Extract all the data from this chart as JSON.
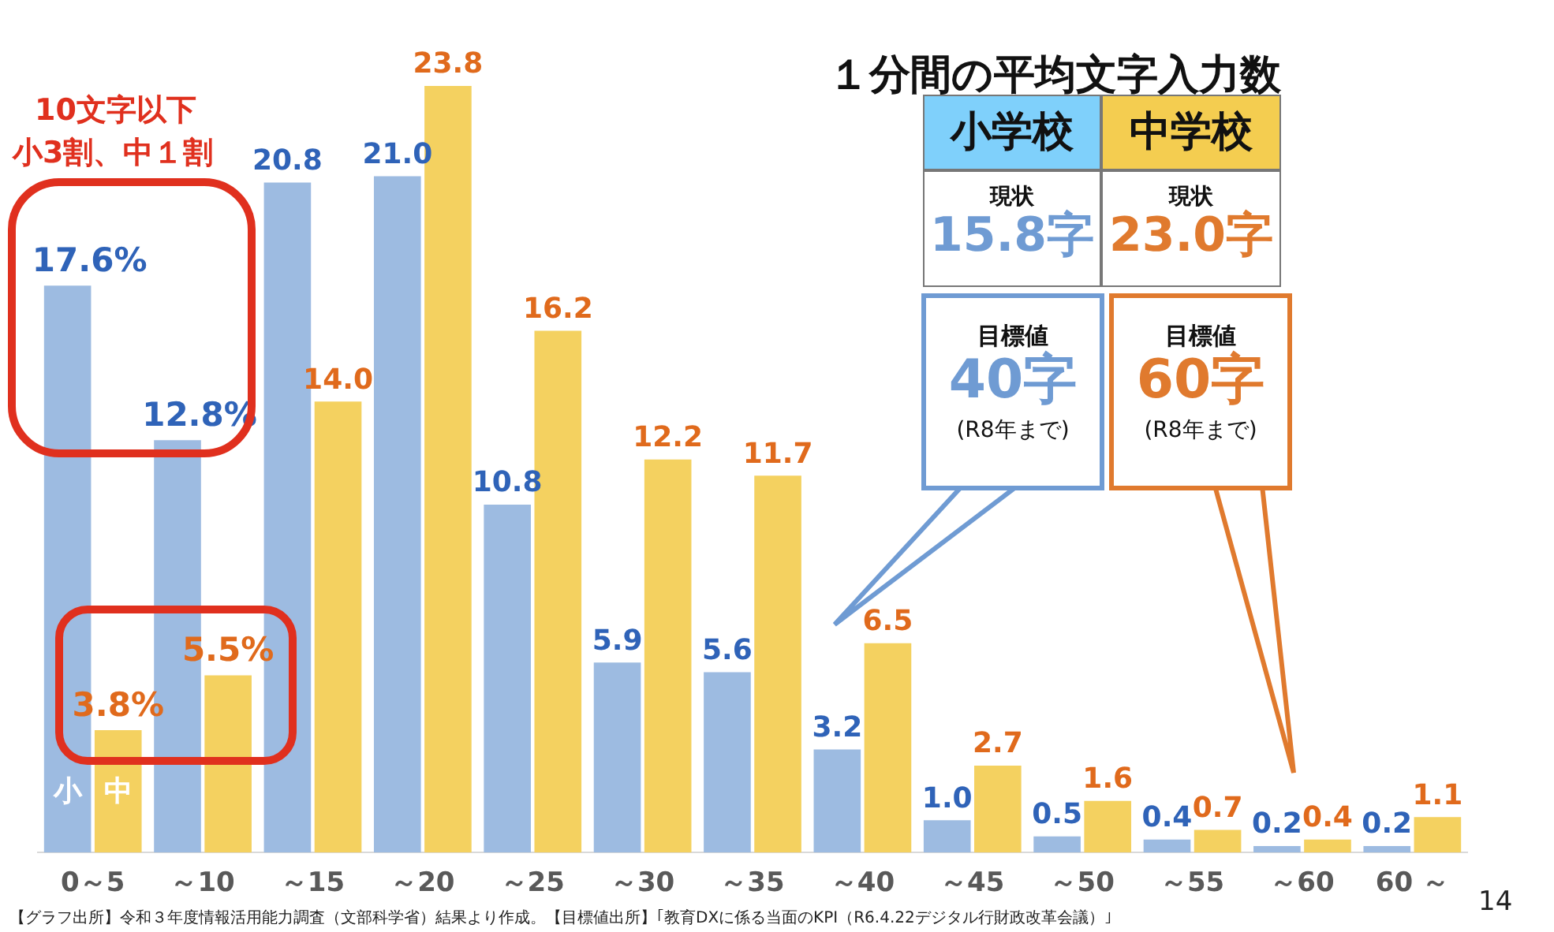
{
  "chart_data": [
    {
      "type": "bar",
      "categories": [
        "0～5",
        "～10",
        "～15",
        "～20",
        "～25",
        "～30",
        "～35",
        "～40",
        "～45",
        "～50",
        "～55",
        "～60",
        "60 ～"
      ],
      "series": [
        {
          "name": "小",
          "color": "#9dbbe1",
          "values": [
            17.6,
            12.8,
            20.8,
            21.0,
            10.8,
            5.9,
            5.6,
            3.2,
            1.0,
            0.5,
            0.4,
            0.2,
            0.2
          ],
          "value_labels": [
            "17.6%",
            "12.8%",
            "20.8",
            "21.0",
            "10.8",
            "5.9",
            "5.6",
            "3.2",
            "1.0",
            "0.5",
            "0.4",
            "0.2",
            "0.2"
          ]
        },
        {
          "name": "中",
          "color": "#f4d160",
          "values": [
            3.8,
            5.5,
            14.0,
            23.8,
            16.2,
            12.2,
            11.7,
            6.5,
            2.7,
            1.6,
            0.7,
            0.4,
            1.1
          ],
          "value_labels": [
            "3.8%",
            "5.5%",
            "14.0",
            "23.8",
            "16.2",
            "12.2",
            "11.7",
            "6.5",
            "2.7",
            "1.6",
            "0.7",
            "0.4",
            "1.1"
          ]
        }
      ],
      "tick_labels": "x",
      "legend": false,
      "annotations": [
        "10文字以下",
        "小3割、中１割",
        "【グラフ出所】令和３年度情報活用能力調査（文部科学省）結果より作成。【目標値出所】｢教育DXに係る当面のKPI（R6.4.22デジタル行財政改革会議）｣",
        "14"
      ]
    },
    {
      "type": "other",
      "title": "１分間の平均文字入力数",
      "annotations": [
        "小学校",
        "中学校",
        "現状",
        "15.8字",
        "現状",
        "23.0字",
        "目標値",
        "40字",
        "(R8年まで)",
        "目標値",
        "60字",
        "(R8年まで)"
      ]
    }
  ]
}
